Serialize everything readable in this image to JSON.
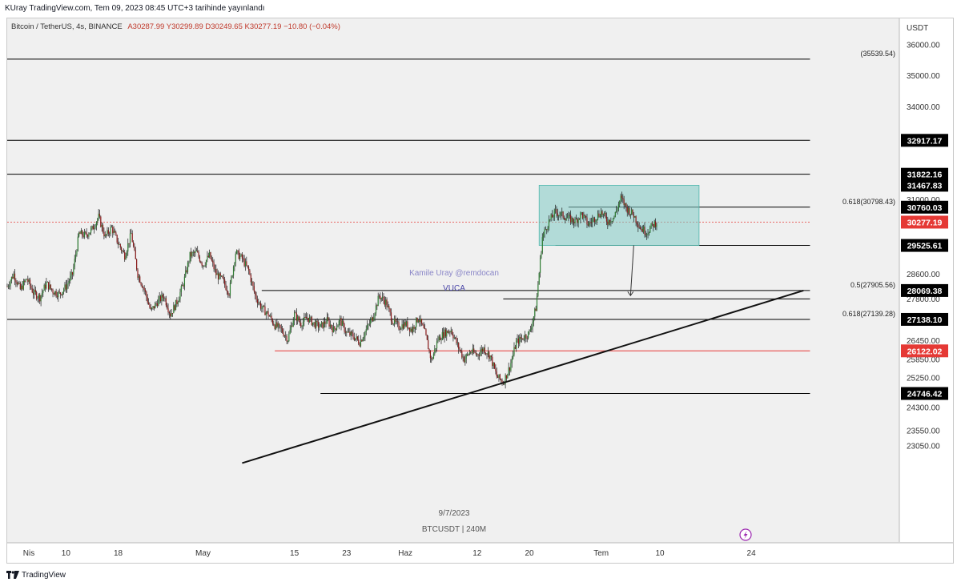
{
  "header": {
    "publish_line": "KUray TradingView.com, Tem 09, 2023 08:45 UTC+3 tarihinde yayınlandı"
  },
  "legend": {
    "symbol": "Bitcoin / TetherUS, 4s, BINANCE",
    "open": "A30287.99",
    "high": "Y30299.89",
    "low": "D30249.65",
    "close": "K30277.19",
    "change": "−10.80 (−0.04%)"
  },
  "watermark": {
    "author": "Kamile Uray @remdocan",
    "note": "VUCA",
    "date": "9/7/2023",
    "symbol_tf": "BTCUSDT | 240M"
  },
  "footer": {
    "brand": "TradingView"
  },
  "chart_data": {
    "type": "candlestick",
    "currency_label": "USDT",
    "y_ticks": [
      "36000.00",
      "35000.00",
      "34000.00",
      "31000.00",
      "28600.00",
      "27800.00",
      "26450.00",
      "25850.00",
      "25250.00",
      "24300.00",
      "23550.00",
      "23050.00"
    ],
    "x_ticks": [
      {
        "label": "Nis",
        "day": 0
      },
      {
        "label": "10",
        "day": 9
      },
      {
        "label": "18",
        "day": 17
      },
      {
        "label": "May",
        "day": 30
      },
      {
        "label": "15",
        "day": 44
      },
      {
        "label": "23",
        "day": 52
      },
      {
        "label": "Haz",
        "day": 61
      },
      {
        "label": "12",
        "day": 72
      },
      {
        "label": "20",
        "day": 80
      },
      {
        "label": "Tem",
        "day": 91
      },
      {
        "label": "10",
        "day": 100
      },
      {
        "label": "24",
        "day": 114
      }
    ],
    "levels": [
      {
        "label": "32917.17",
        "price": 32917.17,
        "color": "#000000"
      },
      {
        "label": "31822.16",
        "price": 31822.16,
        "color": "#000000"
      },
      {
        "label": "31467.83",
        "price": 31467.83,
        "color": "#000000"
      },
      {
        "label": "30760.03",
        "price": 30760.03,
        "color": "#000000"
      },
      {
        "label": "30277.19",
        "price": 30277.19,
        "color": "#e53935"
      },
      {
        "label": "29525.61",
        "price": 29525.61,
        "color": "#000000"
      },
      {
        "label": "28069.38",
        "price": 28069.38,
        "color": "#000000"
      },
      {
        "label": "27138.10",
        "price": 27138.1,
        "color": "#000000"
      },
      {
        "label": "26122.02",
        "price": 26122.02,
        "color": "#e53935"
      },
      {
        "label": "24746.42",
        "price": 24746.42,
        "color": "#000000"
      }
    ],
    "horizontal_lines": [
      {
        "price": 35539.54,
        "from_day": -1,
        "to_day": 123,
        "color": "#000000",
        "label": "(35539.54)"
      },
      {
        "price": 32917.17,
        "from_day": -1,
        "to_day": 123,
        "color": "#000000"
      },
      {
        "price": 31822.16,
        "from_day": -1,
        "to_day": 123,
        "color": "#000000"
      },
      {
        "price": 30760.03,
        "from_day": 86,
        "to_day": 123,
        "color": "#000000",
        "label": "0.618(30798.43)"
      },
      {
        "price": 30277.19,
        "from_day": -1,
        "to_day": 123,
        "color": "#e53935",
        "dashed": true
      },
      {
        "price": 29525.61,
        "from_day": 84,
        "to_day": 123,
        "color": "#000000"
      },
      {
        "price": 28069.38,
        "from_day": 39,
        "to_day": 123,
        "color": "#000000",
        "label": "0.5(27905.56)"
      },
      {
        "price": 27800.0,
        "from_day": 76,
        "to_day": 123,
        "color": "#000000"
      },
      {
        "price": 27138.1,
        "from_day": -1,
        "to_day": 123,
        "color": "#000000",
        "label": "0.618(27139.28)"
      },
      {
        "price": 26122.02,
        "from_day": 41,
        "to_day": 123,
        "color": "#e53935"
      },
      {
        "price": 24746.42,
        "from_day": 48,
        "to_day": 123,
        "color": "#000000"
      }
    ],
    "trendline": {
      "from": {
        "day": 36,
        "price": 22500
      },
      "to": {
        "day": 122,
        "price": 28069.38
      }
    },
    "range_box": {
      "from_day": 81.5,
      "to_day": 106,
      "top": 31467.83,
      "bottom": 29525.61
    },
    "projection_arrow": {
      "day": 95.5,
      "from": 29525.61,
      "to": 27905.56
    },
    "candle_path": [
      [
        0,
        28200
      ],
      [
        1,
        28600
      ],
      [
        2,
        28100
      ],
      [
        3,
        28450
      ],
      [
        4,
        28000
      ],
      [
        5,
        27850
      ],
      [
        6,
        28300
      ],
      [
        7,
        28050
      ],
      [
        8,
        27950
      ],
      [
        9,
        28200
      ],
      [
        10,
        28600
      ],
      [
        11,
        29900
      ],
      [
        12,
        29850
      ],
      [
        13,
        30050
      ],
      [
        14,
        30450
      ],
      [
        15,
        29800
      ],
      [
        16,
        30100
      ],
      [
        17,
        29600
      ],
      [
        18,
        29200
      ],
      [
        19,
        29900
      ],
      [
        20,
        28600
      ],
      [
        21,
        28100
      ],
      [
        22,
        27400
      ],
      [
        23,
        27700
      ],
      [
        24,
        27900
      ],
      [
        25,
        27300
      ],
      [
        26,
        27700
      ],
      [
        27,
        28300
      ],
      [
        28,
        29200
      ],
      [
        29,
        29300
      ],
      [
        30,
        28900
      ],
      [
        31,
        29200
      ],
      [
        32,
        28600
      ],
      [
        33,
        28400
      ],
      [
        34,
        28000
      ],
      [
        35,
        29300
      ],
      [
        36,
        29100
      ],
      [
        37,
        28700
      ],
      [
        38,
        27900
      ],
      [
        39,
        27500
      ],
      [
        40,
        27300
      ],
      [
        41,
        26950
      ],
      [
        42,
        26800
      ],
      [
        43,
        26500
      ],
      [
        44,
        27300
      ],
      [
        45,
        27000
      ],
      [
        46,
        27200
      ],
      [
        47,
        27000
      ],
      [
        48,
        26900
      ],
      [
        49,
        27100
      ],
      [
        50,
        26800
      ],
      [
        51,
        27100
      ],
      [
        52,
        26700
      ],
      [
        53,
        26600
      ],
      [
        54,
        26400
      ],
      [
        55,
        26800
      ],
      [
        56,
        27200
      ],
      [
        57,
        27900
      ],
      [
        58,
        27700
      ],
      [
        59,
        27100
      ],
      [
        60,
        26900
      ],
      [
        61,
        27000
      ],
      [
        62,
        26800
      ],
      [
        63,
        27200
      ],
      [
        64,
        26700
      ],
      [
        65,
        25800
      ],
      [
        66,
        26500
      ],
      [
        67,
        26700
      ],
      [
        68,
        26800
      ],
      [
        69,
        26300
      ],
      [
        70,
        25850
      ],
      [
        71,
        26100
      ],
      [
        72,
        26000
      ],
      [
        73,
        26200
      ],
      [
        74,
        25950
      ],
      [
        75,
        25300
      ],
      [
        76,
        25100
      ],
      [
        77,
        25600
      ],
      [
        78,
        26400
      ],
      [
        79,
        26550
      ],
      [
        80,
        26700
      ],
      [
        81,
        27500
      ],
      [
        82,
        29800
      ],
      [
        83,
        30300
      ],
      [
        84,
        30600
      ],
      [
        85,
        30500
      ],
      [
        86,
        30400
      ],
      [
        87,
        30300
      ],
      [
        88,
        30550
      ],
      [
        89,
        30200
      ],
      [
        90,
        30400
      ],
      [
        91,
        30600
      ],
      [
        92,
        30300
      ],
      [
        93,
        30450
      ],
      [
        94,
        31050
      ],
      [
        95,
        30700
      ],
      [
        96,
        30500
      ],
      [
        97,
        30100
      ],
      [
        98,
        29950
      ],
      [
        99,
        30200
      ],
      [
        99.5,
        30277
      ]
    ]
  }
}
